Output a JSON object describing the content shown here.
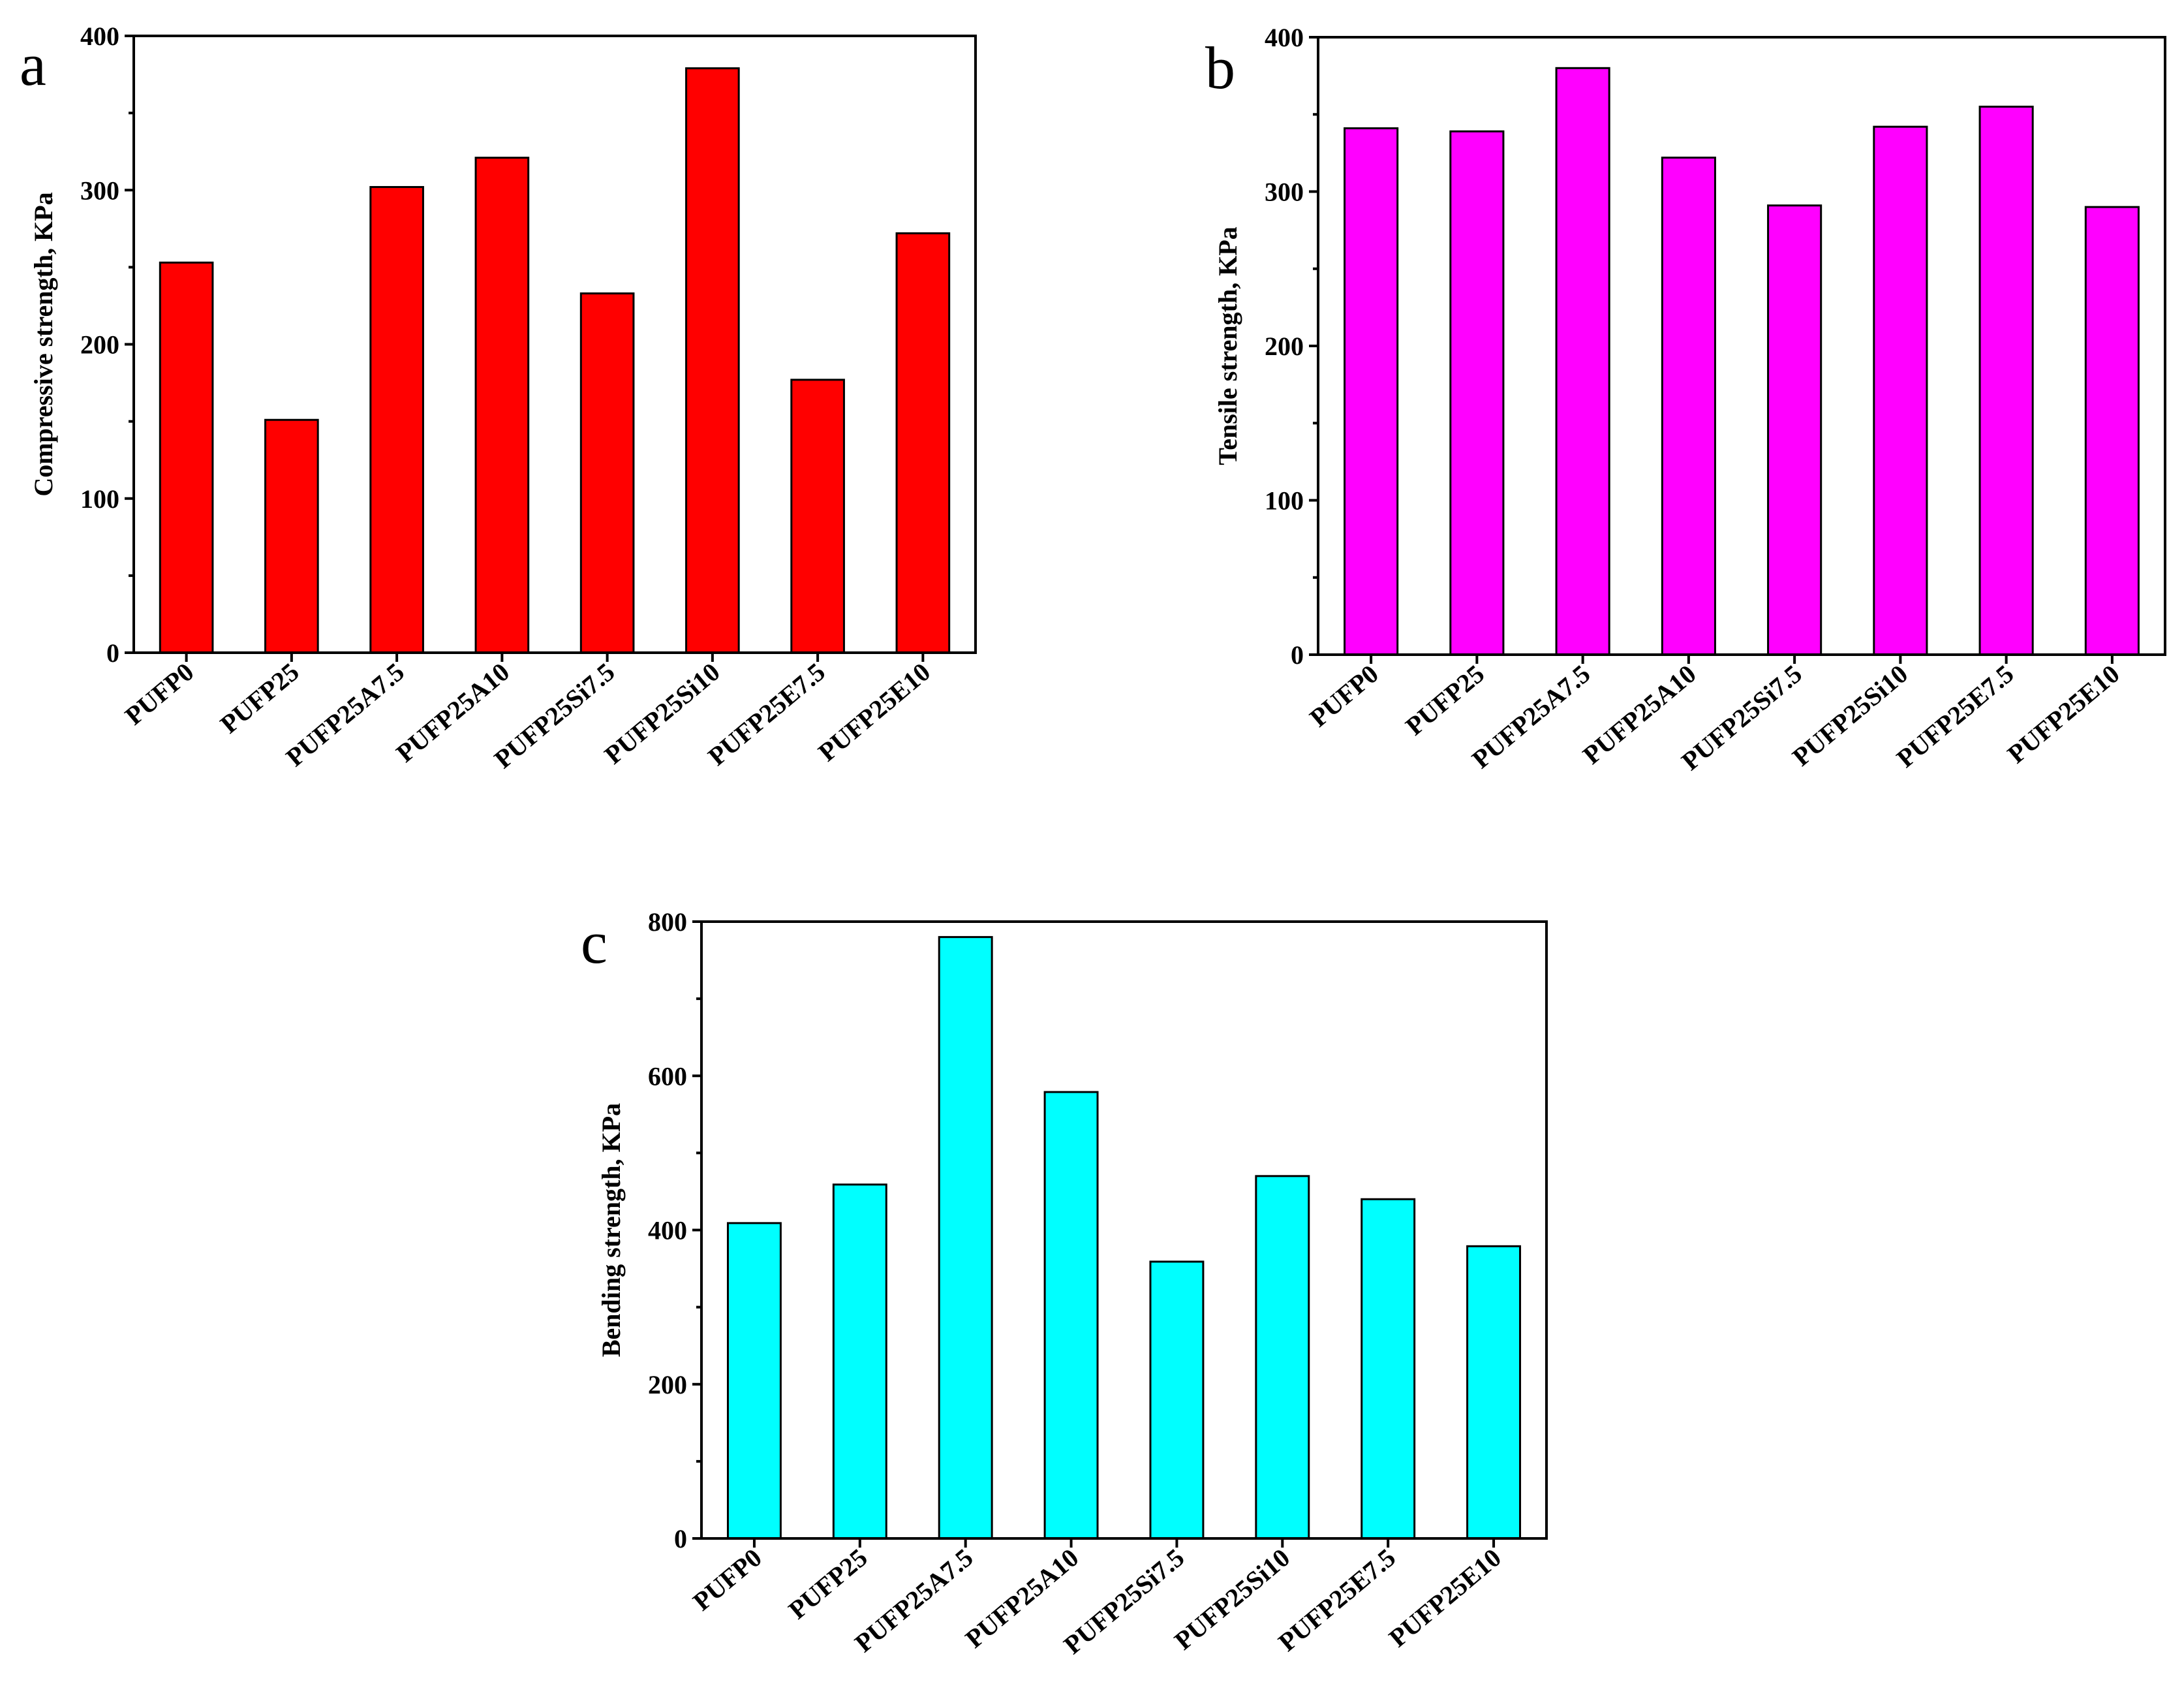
{
  "chart_data": [
    {
      "panel": "a",
      "type": "bar",
      "categories": [
        "PUFP0",
        "PUFP25",
        "PUFP25A7.5",
        "PUFP25A10",
        "PUFP25Si7.5",
        "PUFP25Si10",
        "PUFP25E7.5",
        "PUFP25E10"
      ],
      "values": [
        253,
        151,
        302,
        321,
        233,
        379,
        177,
        272
      ],
      "xlabel": "",
      "ylabel": "Compressive strength, KPa",
      "ylim": [
        0,
        400
      ],
      "yticks": [
        0,
        100,
        200,
        300,
        400
      ],
      "color": "#ff0000",
      "grid": false
    },
    {
      "panel": "b",
      "type": "bar",
      "categories": [
        "PUFP0",
        "PUFP25",
        "PUFP25A7.5",
        "PUFP25A10",
        "PUFP25Si7.5",
        "PUFP25Si10",
        "PUFP25E7.5",
        "PUFP25E10"
      ],
      "values": [
        341,
        339,
        380,
        322,
        291,
        342,
        355,
        290
      ],
      "xlabel": "",
      "ylabel": "Tensile strength, KPa",
      "ylim": [
        0,
        400
      ],
      "yticks": [
        0,
        100,
        200,
        300,
        400
      ],
      "color": "#ff00ff",
      "grid": false
    },
    {
      "panel": "c",
      "type": "bar",
      "categories": [
        "PUFP0",
        "PUFP25",
        "PUFP25A7.5",
        "PUFP25A10",
        "PUFP25Si7.5",
        "PUFP25Si10",
        "PUFP25E7.5",
        "PUFP25E10"
      ],
      "values": [
        409,
        459,
        780,
        579,
        359,
        470,
        440,
        379
      ],
      "xlabel": "",
      "ylabel": "Bending strength, KPa",
      "ylim": [
        0,
        800
      ],
      "yticks": [
        0,
        200,
        400,
        600,
        800
      ],
      "color": "#00ffff",
      "grid": false
    }
  ]
}
